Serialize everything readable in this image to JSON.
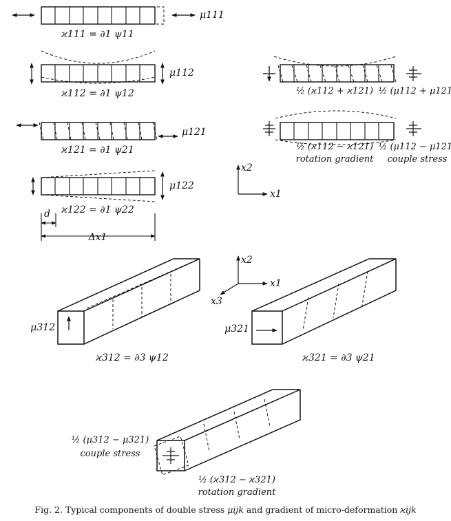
{
  "panels": {
    "k111": {
      "stress": "μ111",
      "relation": "ϰ111 = ∂1 ψ11"
    },
    "k112": {
      "stress": "μ112",
      "relation": "ϰ112 = ∂1 ψ12"
    },
    "k121": {
      "stress": "μ121",
      "relation": "ϰ121 = ∂1 ψ21"
    },
    "k122": {
      "stress": "μ122",
      "relation": "ϰ122 = ∂1 ψ22",
      "cell_label": "d",
      "span_label": "Δx1"
    },
    "sym": {
      "left_label": "½ (ϰ112 + ϰ121)",
      "right_label": "½ (μ112 + μ121)"
    },
    "anti": {
      "left_label": "½ (ϰ112 − ϰ121)",
      "left_caption": "rotation gradient",
      "right_label": "½ (μ112 − μ121)",
      "right_caption": "couple stress"
    },
    "axes2d": {
      "x1": "x1",
      "x2": "x2"
    },
    "axes3d": {
      "x1": "x1",
      "x2": "x2",
      "x3": "x3"
    },
    "k312": {
      "stress": "μ312",
      "relation": "ϰ312 = ∂3 ψ12"
    },
    "k321": {
      "stress": "μ321",
      "relation": "ϰ321 = ∂3 ψ21"
    },
    "k3anti": {
      "stress_label": "½ (μ312 − μ321)",
      "stress_caption": "couple stress",
      "grad_label": "½ (ϰ312 − ϰ321)",
      "grad_caption": "rotation gradient"
    }
  },
  "caption": {
    "prefix": "Fig. 2.",
    "text": "Typical components of double stress",
    "stress_symbol": "μijk",
    "connector": "and gradient of micro-deformation",
    "grad_symbol": "ϰijk"
  }
}
